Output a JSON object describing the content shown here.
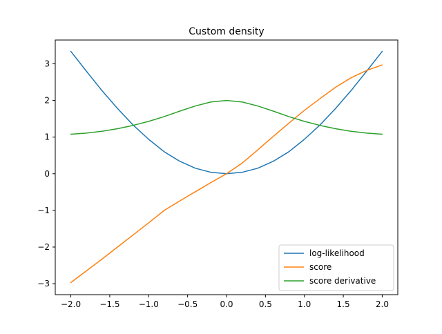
{
  "chart_data": {
    "type": "line",
    "title": "Custom density",
    "xlabel": "",
    "ylabel": "",
    "xlim": [
      -2.2,
      2.2
    ],
    "ylim": [
      -3.3,
      3.65
    ],
    "x_ticks": [
      -2.0,
      -1.5,
      -1.0,
      -0.5,
      0.0,
      0.5,
      1.0,
      1.5,
      2.0
    ],
    "x_tick_labels": [
      "−2.0",
      "−1.5",
      "−1.0",
      "−0.5",
      "0.0",
      "0.5",
      "1.0",
      "1.5",
      "2.0"
    ],
    "y_ticks": [
      -3,
      -2,
      -1,
      0,
      1,
      2,
      3
    ],
    "y_tick_labels": [
      "−3",
      "−2",
      "−1",
      "0",
      "1",
      "2",
      "3"
    ],
    "grid": false,
    "legend_position": "lower-right",
    "x": [
      -2.0,
      -1.8,
      -1.6,
      -1.4,
      -1.2,
      -1.0,
      -0.8,
      -0.6,
      -0.4,
      -0.2,
      0.0,
      0.2,
      0.4,
      0.6,
      0.8,
      1.0,
      1.2,
      1.4,
      1.6,
      1.8,
      2.0
    ],
    "series": [
      {
        "name": "log-likelihood",
        "color": "#1f77b4",
        "values": [
          3.34,
          2.8,
          2.27,
          1.78,
          1.33,
          0.94,
          0.6,
          0.34,
          0.15,
          0.04,
          0.0,
          0.04,
          0.15,
          0.34,
          0.6,
          0.94,
          1.33,
          1.78,
          2.27,
          2.8,
          3.34
        ]
      },
      {
        "name": "score",
        "color": "#ff7f0e",
        "values": [
          -2.97,
          -2.65,
          -2.33,
          -2.0,
          -1.67,
          -1.34,
          -1.0,
          -0.74,
          -0.49,
          -0.24,
          0.0,
          0.29,
          0.65,
          1.02,
          1.38,
          1.73,
          2.05,
          2.36,
          2.62,
          2.82,
          2.97
        ]
      },
      {
        "name": "score derivative",
        "color": "#2ca02c",
        "values": [
          1.08,
          1.11,
          1.16,
          1.23,
          1.32,
          1.43,
          1.56,
          1.71,
          1.85,
          1.96,
          2.0,
          1.96,
          1.85,
          1.71,
          1.56,
          1.43,
          1.32,
          1.23,
          1.16,
          1.11,
          1.08
        ]
      }
    ]
  }
}
